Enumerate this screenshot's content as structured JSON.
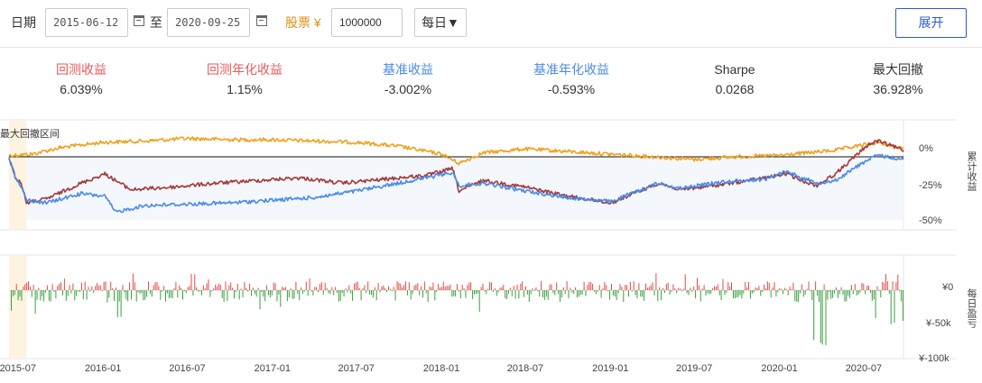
{
  "toolbar": {
    "date_label": "日期",
    "start_date": "2015-06-12",
    "to_label": "至",
    "end_date": "2020-09-25",
    "stock_label": "股票 ¥",
    "capital": "1000000",
    "frequency": "每日▼",
    "expand_label": "展开"
  },
  "stats": [
    {
      "name": "回测收益",
      "value": "6.039%",
      "color": "#e85a5a"
    },
    {
      "name": "回测年化收益",
      "value": "1.15%",
      "color": "#e85a5a"
    },
    {
      "name": "基准收益",
      "value": "-3.002%",
      "color": "#4a8ae8"
    },
    {
      "name": "基准年化收益",
      "value": "-0.593%",
      "color": "#4a8ae8"
    },
    {
      "name": "Sharpe",
      "value": "0.0268",
      "color": "#333333"
    },
    {
      "name": "最大回撤",
      "value": "36.928%",
      "color": "#333333"
    }
  ],
  "chart_data": [
    {
      "type": "line",
      "annotation": "最大回撤区间",
      "ylabel": "累计收益",
      "y_ticks": [
        "0%",
        "-25%",
        "-50%"
      ],
      "ylim": [
        -0.5,
        0.1
      ],
      "xlim": [
        "2015-06-12",
        "2020-09-25"
      ],
      "drawdown_range": [
        "2015-06-12",
        "2015-07-20"
      ],
      "series": [
        {
          "key": "excess",
          "color": "#f0a01e",
          "dates": [
            "2015-06-12",
            "2015-08-01",
            "2015-10-01",
            "2016-01-01",
            "2016-04-01",
            "2016-07-01",
            "2016-10-01",
            "2017-01-01",
            "2017-04-01",
            "2017-07-01",
            "2017-10-01",
            "2018-01-01",
            "2018-02-08",
            "2018-04-01",
            "2018-07-01",
            "2018-10-01",
            "2019-01-01",
            "2019-04-01",
            "2019-07-01",
            "2019-10-01",
            "2020-01-01",
            "2020-03-01",
            "2020-05-01",
            "2020-07-01",
            "2020-08-01",
            "2020-09-25"
          ],
          "values": [
            0.01,
            0.02,
            0.07,
            0.11,
            0.12,
            0.14,
            0.13,
            0.13,
            0.12,
            0.11,
            0.08,
            0.02,
            -0.05,
            0.03,
            0.06,
            0.04,
            0.02,
            0.0,
            -0.02,
            0.0,
            0.01,
            0.03,
            0.05,
            0.09,
            0.11,
            0.06
          ]
        },
        {
          "key": "strategy",
          "color": "#a33a3a",
          "dates": [
            "2015-06-12",
            "2015-06-25",
            "2015-07-08",
            "2015-07-20",
            "2015-09-01",
            "2015-11-15",
            "2016-01-05",
            "2016-03-01",
            "2016-06-01",
            "2016-09-01",
            "2016-12-01",
            "2017-03-01",
            "2017-06-01",
            "2017-09-01",
            "2017-12-01",
            "2018-01-25",
            "2018-02-08",
            "2018-04-01",
            "2018-07-01",
            "2018-10-01",
            "2019-01-03",
            "2019-04-15",
            "2019-06-01",
            "2019-09-01",
            "2019-12-01",
            "2020-01-15",
            "2020-03-20",
            "2020-05-01",
            "2020-07-10",
            "2020-08-01",
            "2020-09-25"
          ],
          "values": [
            0.0,
            -0.15,
            -0.2,
            -0.35,
            -0.32,
            -0.2,
            -0.13,
            -0.25,
            -0.23,
            -0.2,
            -0.18,
            -0.16,
            -0.2,
            -0.17,
            -0.14,
            -0.09,
            -0.26,
            -0.18,
            -0.23,
            -0.3,
            -0.35,
            -0.2,
            -0.25,
            -0.21,
            -0.16,
            -0.13,
            -0.22,
            -0.13,
            0.09,
            0.12,
            0.05
          ]
        },
        {
          "key": "benchmark",
          "color": "#4a8ae8",
          "dates": [
            "2015-06-12",
            "2015-06-25",
            "2015-07-08",
            "2015-07-20",
            "2015-09-01",
            "2015-11-15",
            "2016-01-05",
            "2016-01-28",
            "2016-04-01",
            "2016-07-01",
            "2016-10-01",
            "2017-01-01",
            "2017-04-01",
            "2017-07-01",
            "2017-10-01",
            "2018-01-25",
            "2018-02-08",
            "2018-04-01",
            "2018-07-01",
            "2018-10-01",
            "2019-01-03",
            "2019-04-15",
            "2019-06-01",
            "2019-09-01",
            "2019-12-01",
            "2020-01-15",
            "2020-03-20",
            "2020-05-01",
            "2020-07-10",
            "2020-08-01",
            "2020-09-25"
          ],
          "values": [
            0.0,
            -0.15,
            -0.22,
            -0.33,
            -0.35,
            -0.28,
            -0.3,
            -0.42,
            -0.37,
            -0.36,
            -0.35,
            -0.33,
            -0.31,
            -0.26,
            -0.2,
            -0.12,
            -0.22,
            -0.2,
            -0.26,
            -0.31,
            -0.34,
            -0.2,
            -0.24,
            -0.19,
            -0.17,
            -0.11,
            -0.2,
            -0.18,
            -0.02,
            0.01,
            -0.02
          ]
        }
      ]
    },
    {
      "type": "bar",
      "ylabel": "每日盈亏",
      "y_ticks": [
        "¥0",
        "¥-50k",
        "¥-100k"
      ],
      "ylim": [
        -100000,
        15000
      ],
      "x_ticks": [
        "2015-07",
        "2016-01",
        "2016-07",
        "2017-01",
        "2017-07",
        "2018-01",
        "2018-07",
        "2019-01",
        "2019-07",
        "2020-01",
        "2020-07"
      ],
      "positive_color": "#e84a4a",
      "negative_color": "#3aa03a"
    }
  ]
}
